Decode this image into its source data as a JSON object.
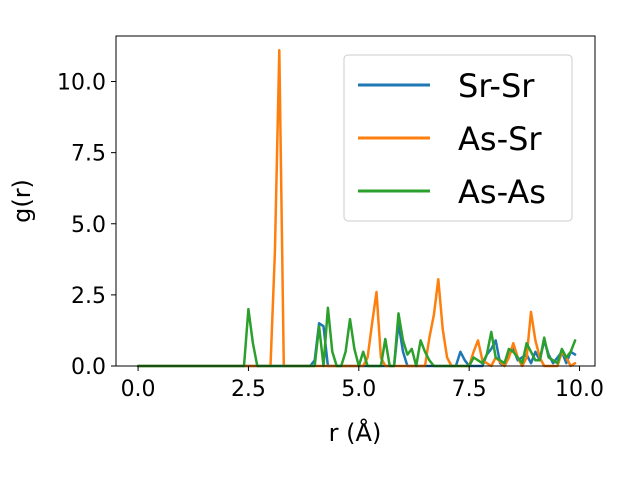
{
  "chart_data": {
    "type": "line",
    "title": "",
    "xlabel": "r (Å)",
    "ylabel": "g(r)",
    "xlim": [
      -0.5,
      10.35
    ],
    "ylim": [
      0,
      11.6
    ],
    "xticks": [
      0.0,
      2.5,
      5.0,
      7.5,
      10.0
    ],
    "yticks": [
      0.0,
      2.5,
      5.0,
      7.5,
      10.0
    ],
    "xtick_labels": [
      "0.0",
      "2.5",
      "5.0",
      "7.5",
      "10.0"
    ],
    "ytick_labels": [
      "0.0",
      "2.5",
      "5.0",
      "7.5",
      "10.0"
    ],
    "grid": false,
    "legend_position": "top-right",
    "series": [
      {
        "name": "Sr-Sr",
        "color": "#1f77b4",
        "points": [
          [
            0.0,
            0
          ],
          [
            3.9,
            0
          ],
          [
            4.0,
            0.2
          ],
          [
            4.1,
            1.5
          ],
          [
            4.2,
            1.4
          ],
          [
            4.3,
            0
          ],
          [
            5.8,
            0
          ],
          [
            5.9,
            1.5
          ],
          [
            6.0,
            0.5
          ],
          [
            6.1,
            0
          ],
          [
            7.2,
            0
          ],
          [
            7.3,
            0.5
          ],
          [
            7.4,
            0.2
          ],
          [
            7.5,
            0
          ],
          [
            7.8,
            0
          ],
          [
            7.9,
            0.4
          ],
          [
            8.0,
            0.6
          ],
          [
            8.1,
            0.9
          ],
          [
            8.2,
            0.1
          ],
          [
            8.3,
            0
          ],
          [
            8.4,
            0.4
          ],
          [
            8.5,
            0.6
          ],
          [
            8.6,
            0.2
          ],
          [
            8.8,
            0.4
          ],
          [
            8.9,
            0.1
          ],
          [
            9.0,
            0.5
          ],
          [
            9.1,
            0.2
          ],
          [
            9.2,
            0.9
          ],
          [
            9.3,
            0.4
          ],
          [
            9.4,
            0.1
          ],
          [
            9.5,
            0.3
          ],
          [
            9.6,
            0.5
          ],
          [
            9.7,
            0.1
          ],
          [
            9.8,
            0.5
          ],
          [
            9.9,
            0.4
          ]
        ]
      },
      {
        "name": "As-Sr",
        "color": "#ff7f0e",
        "points": [
          [
            0.0,
            0
          ],
          [
            3.0,
            0
          ],
          [
            3.1,
            4
          ],
          [
            3.2,
            11.1
          ],
          [
            3.3,
            0
          ],
          [
            5.1,
            0
          ],
          [
            5.2,
            0.3
          ],
          [
            5.3,
            1.5
          ],
          [
            5.4,
            2.6
          ],
          [
            5.5,
            0.3
          ],
          [
            5.6,
            0
          ],
          [
            6.5,
            0
          ],
          [
            6.6,
            1
          ],
          [
            6.7,
            1.8
          ],
          [
            6.8,
            3.05
          ],
          [
            6.9,
            1.3
          ],
          [
            7.0,
            0.3
          ],
          [
            7.1,
            0
          ],
          [
            7.5,
            0
          ],
          [
            7.6,
            0.5
          ],
          [
            7.7,
            0.9
          ],
          [
            7.8,
            0.2
          ],
          [
            8.0,
            0
          ],
          [
            8.1,
            0.3
          ],
          [
            8.3,
            0
          ],
          [
            8.4,
            0.3
          ],
          [
            8.5,
            0.8
          ],
          [
            8.6,
            0.3
          ],
          [
            8.7,
            0
          ],
          [
            8.8,
            0.3
          ],
          [
            8.9,
            1.9
          ],
          [
            9.0,
            0.9
          ],
          [
            9.1,
            0.3
          ],
          [
            9.2,
            0
          ],
          [
            9.5,
            0
          ],
          [
            9.6,
            0.5
          ],
          [
            9.7,
            0.3
          ],
          [
            9.8,
            0
          ],
          [
            9.9,
            0.1
          ]
        ]
      },
      {
        "name": "As-As",
        "color": "#2ca02c",
        "points": [
          [
            0.0,
            0
          ],
          [
            2.4,
            0
          ],
          [
            2.5,
            2
          ],
          [
            2.6,
            0.8
          ],
          [
            2.7,
            0
          ],
          [
            4.0,
            0
          ],
          [
            4.1,
            1.4
          ],
          [
            4.2,
            0
          ],
          [
            4.3,
            2.05
          ],
          [
            4.4,
            0.5
          ],
          [
            4.5,
            0
          ],
          [
            4.6,
            0
          ],
          [
            4.7,
            0.5
          ],
          [
            4.8,
            1.65
          ],
          [
            4.9,
            0.6
          ],
          [
            5.0,
            0
          ],
          [
            5.1,
            0.5
          ],
          [
            5.2,
            0
          ],
          [
            5.5,
            0
          ],
          [
            5.6,
            0.95
          ],
          [
            5.7,
            0
          ],
          [
            5.8,
            0
          ],
          [
            5.9,
            1.85
          ],
          [
            6.0,
            0.9
          ],
          [
            6.1,
            0.4
          ],
          [
            6.2,
            0.6
          ],
          [
            6.3,
            0
          ],
          [
            6.4,
            0.9
          ],
          [
            6.5,
            0.5
          ],
          [
            6.6,
            0.2
          ],
          [
            6.7,
            0
          ],
          [
            7.5,
            0
          ],
          [
            7.6,
            0.3
          ],
          [
            7.7,
            0.2
          ],
          [
            7.8,
            0.1
          ],
          [
            7.9,
            0.4
          ],
          [
            8.0,
            1.2
          ],
          [
            8.1,
            0.3
          ],
          [
            8.2,
            0.2
          ],
          [
            8.3,
            0.1
          ],
          [
            8.4,
            0.6
          ],
          [
            8.5,
            0.5
          ],
          [
            8.6,
            0.3
          ],
          [
            8.7,
            0.1
          ],
          [
            8.8,
            0.8
          ],
          [
            8.9,
            0.5
          ],
          [
            9.0,
            0.2
          ],
          [
            9.1,
            0.2
          ],
          [
            9.2,
            1.0
          ],
          [
            9.3,
            0.3
          ],
          [
            9.4,
            0.2
          ],
          [
            9.5,
            0.1
          ],
          [
            9.6,
            0.6
          ],
          [
            9.7,
            0.3
          ],
          [
            9.8,
            0.5
          ],
          [
            9.9,
            0.9
          ]
        ]
      }
    ]
  }
}
